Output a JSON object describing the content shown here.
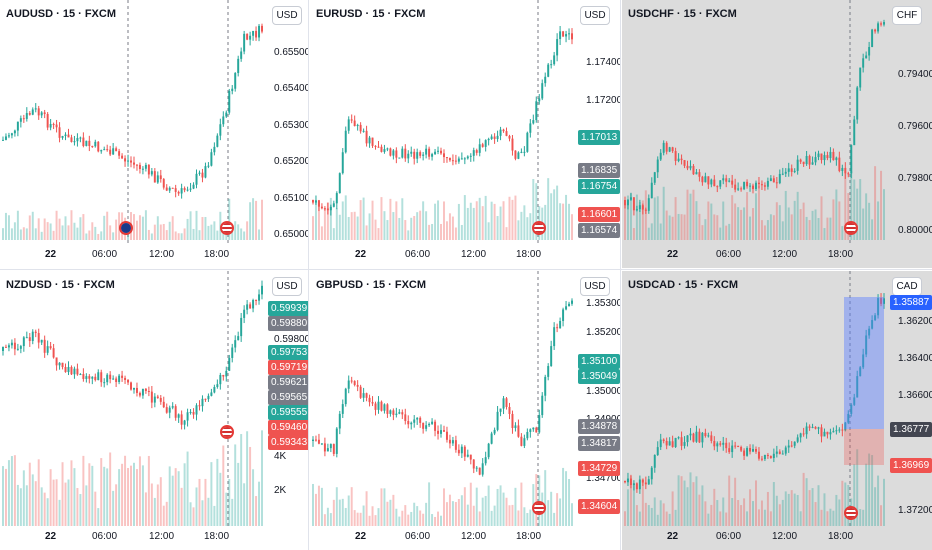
{
  "colors": {
    "up": "#26a69a",
    "down": "#ef5350",
    "green_tag": "#26a69a",
    "red_tag": "#ef5350",
    "gray_tag": "#787b86",
    "blue_tag": "#2962ff",
    "dark_tag": "#434651"
  },
  "panes": [
    {
      "title": "AUDUSD · 15 · FXCM",
      "currency": "USD",
      "price_labels": [
        "0.65500",
        "0.65400",
        "0.65300",
        "0.65200",
        "0.65100",
        "0.65000"
      ],
      "time_labels": [
        "22",
        "06:00",
        "12:00",
        "18:00"
      ],
      "tags": [],
      "flags": [
        "au-flag-icon",
        "us-flag-icon"
      ]
    },
    {
      "title": "EURUSD · 15 · FXCM",
      "currency": "USD",
      "price_labels": [
        "1.17400",
        "1.17200"
      ],
      "time_labels": [
        "22",
        "06:00",
        "12:00",
        "18:00"
      ],
      "tags": [
        {
          "text": "1.17013",
          "color": "green"
        },
        {
          "text": "1.16835",
          "color": "gray"
        },
        {
          "text": "1.16754",
          "color": "green"
        },
        {
          "text": "1.16601",
          "color": "red"
        },
        {
          "text": "1.16574",
          "color": "gray"
        }
      ],
      "flags": [
        "us-flag-icon"
      ]
    },
    {
      "title": "USDCHF · 15 · FXCM",
      "currency": "CHF",
      "price_labels": [
        "0.79400",
        "0.79600",
        "0.79800",
        "0.80000"
      ],
      "time_labels": [
        "22",
        "06:00",
        "12:00",
        "18:00"
      ],
      "tags": [],
      "flags": [
        "us-flag-icon"
      ]
    },
    {
      "title": "NZDUSD · 15 · FXCM",
      "currency": "USD",
      "price_labels": [
        "0.59800",
        "4K",
        "2K"
      ],
      "time_labels": [
        "22",
        "06:00",
        "12:00",
        "18:00"
      ],
      "tags": [
        {
          "text": "0.59939",
          "color": "green"
        },
        {
          "text": "0.59880",
          "color": "gray"
        },
        {
          "text": "0.59753",
          "color": "green"
        },
        {
          "text": "0.59719",
          "color": "red"
        },
        {
          "text": "0.59621",
          "color": "gray"
        },
        {
          "text": "0.59565",
          "color": "gray"
        },
        {
          "text": "0.59555",
          "color": "green"
        },
        {
          "text": "0.59460",
          "color": "red"
        },
        {
          "text": "0.59343",
          "color": "red"
        }
      ],
      "flags": [
        "us-flag-icon"
      ]
    },
    {
      "title": "GBPUSD · 15 · FXCM",
      "currency": "USD",
      "price_labels": [
        "1.35300",
        "1.35200",
        "1.35000",
        "1.34900",
        "1.34700"
      ],
      "time_labels": [
        "22",
        "06:00",
        "12:00",
        "18:00"
      ],
      "tags": [
        {
          "text": "1.35100",
          "color": "green"
        },
        {
          "text": "1.35049",
          "color": "green"
        },
        {
          "text": "1.34878",
          "color": "gray"
        },
        {
          "text": "1.34817",
          "color": "gray"
        },
        {
          "text": "1.34729",
          "color": "red"
        },
        {
          "text": "1.34604",
          "color": "red"
        }
      ],
      "flags": [
        "us-flag-icon"
      ]
    },
    {
      "title": "USDCAD · 15 · FXCM",
      "currency": "CAD",
      "price_labels": [
        "1.36200",
        "1.36400",
        "1.36600",
        "1.37200"
      ],
      "time_labels": [
        "22",
        "06:00",
        "12:00",
        "18:00"
      ],
      "tags": [
        {
          "text": "1.35887",
          "color": "blue"
        },
        {
          "text": "1.36777",
          "color": "dark"
        },
        {
          "text": "1.36969",
          "color": "red"
        }
      ],
      "flags": [
        "us-flag-icon"
      ]
    }
  ]
}
